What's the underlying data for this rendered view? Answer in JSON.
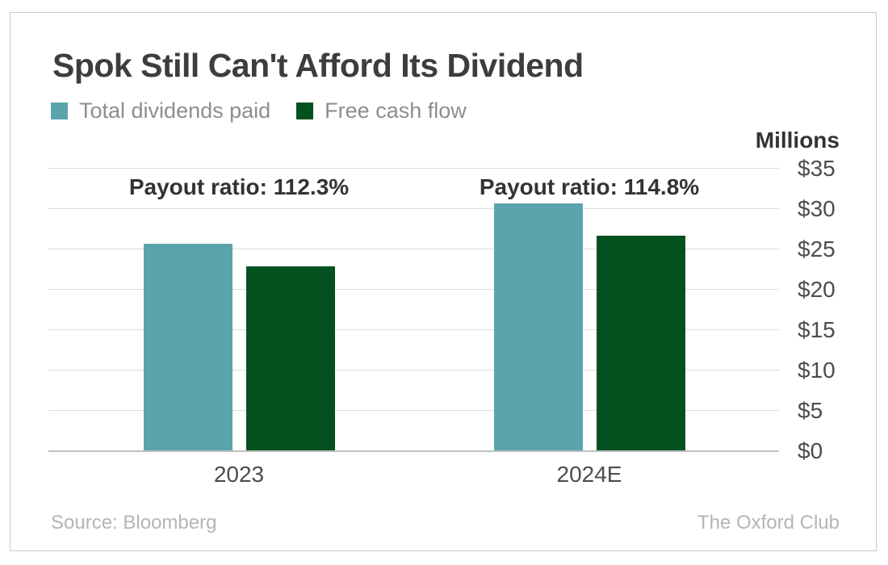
{
  "title": "Spok Still Can't Afford Its Dividend",
  "legend": {
    "items": [
      {
        "label": "Total dividends paid",
        "color": "#5ba4ad"
      },
      {
        "label": "Free cash flow",
        "color": "#03511f"
      }
    ]
  },
  "axis": {
    "unit_label": "Millions",
    "tick_labels": [
      "$35",
      "$30",
      "$25",
      "$20",
      "$15",
      "$10",
      "$5",
      "$0"
    ]
  },
  "footer": {
    "source": "Source: Bloomberg",
    "brand": "The Oxford Club"
  },
  "chart_data": {
    "type": "bar",
    "categories": [
      "2023",
      "2024E"
    ],
    "series": [
      {
        "name": "Total dividends paid",
        "color": "#5ba4ad",
        "values": [
          25.6,
          30.6
        ]
      },
      {
        "name": "Free cash flow",
        "color": "#03511f",
        "values": [
          22.8,
          26.6
        ]
      }
    ],
    "annotations": [
      "Payout ratio: 112.3%",
      "Payout ratio: 114.8%"
    ],
    "title": "Spok Still Can't Afford Its Dividend",
    "xlabel": "",
    "ylabel": "Millions",
    "ylim": [
      0,
      35
    ],
    "ytick_step": 5,
    "ytick_prefix": "$",
    "grid": true,
    "legend_position": "top-left",
    "source": "Bloomberg",
    "attribution": "The Oxford Club"
  }
}
